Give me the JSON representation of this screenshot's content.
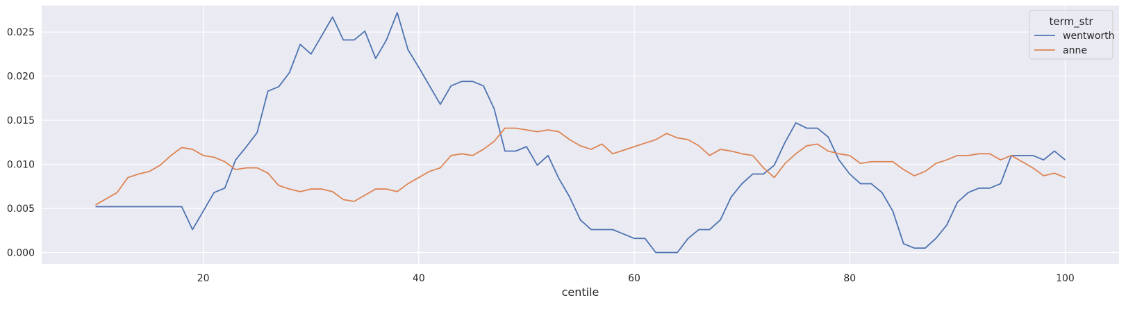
{
  "chart_data": {
    "type": "line",
    "title": "",
    "xlabel": "centile",
    "ylabel": "",
    "xlim": [
      5,
      105
    ],
    "ylim": [
      -0.0013,
      0.028
    ],
    "grid": true,
    "xticks": [
      20,
      40,
      60,
      80,
      100
    ],
    "xtick_labels": [
      "20",
      "40",
      "60",
      "80",
      "100"
    ],
    "yticks": [
      0.0,
      0.005,
      0.01,
      0.015,
      0.02,
      0.025
    ],
    "ytick_labels": [
      "0.000",
      "0.005",
      "0.010",
      "0.015",
      "0.020",
      "0.025"
    ],
    "legend": {
      "title": "term_str",
      "position": "top-right"
    },
    "x": [
      10,
      11,
      12,
      13,
      14,
      15,
      16,
      17,
      18,
      19,
      20,
      21,
      22,
      23,
      24,
      25,
      26,
      27,
      28,
      29,
      30,
      31,
      32,
      33,
      34,
      35,
      36,
      37,
      38,
      39,
      40,
      41,
      42,
      43,
      44,
      45,
      46,
      47,
      48,
      49,
      50,
      51,
      52,
      53,
      54,
      55,
      56,
      57,
      58,
      59,
      60,
      61,
      62,
      63,
      64,
      65,
      66,
      67,
      68,
      69,
      70,
      71,
      72,
      73,
      74,
      75,
      76,
      77,
      78,
      79,
      80,
      81,
      82,
      83,
      84,
      85,
      86,
      87,
      88,
      89,
      90,
      91,
      92,
      93,
      94,
      95,
      96,
      97,
      98,
      99,
      100
    ],
    "series": [
      {
        "name": "wentworth",
        "color": "#4c72b0",
        "values": [
          0.0052,
          0.0052,
          0.0052,
          0.0052,
          0.0052,
          0.0052,
          0.0052,
          0.0052,
          0.0052,
          0.0026,
          0.0047,
          0.0068,
          0.0073,
          0.0105,
          0.012,
          0.0136,
          0.0183,
          0.0188,
          0.0204,
          0.0236,
          0.0225,
          0.0246,
          0.0267,
          0.0241,
          0.0241,
          0.0251,
          0.022,
          0.0241,
          0.0272,
          0.023,
          0.021,
          0.0189,
          0.0168,
          0.0189,
          0.0194,
          0.0194,
          0.0189,
          0.0163,
          0.0115,
          0.0115,
          0.012,
          0.0099,
          0.011,
          0.0084,
          0.0063,
          0.0037,
          0.0026,
          0.0026,
          0.0026,
          0.0021,
          0.0016,
          0.0016,
          0.0,
          0.0,
          0.0,
          0.0016,
          0.0026,
          0.0026,
          0.0037,
          0.0063,
          0.0078,
          0.0089,
          0.0089,
          0.0099,
          0.0125,
          0.0147,
          0.0141,
          0.0141,
          0.0131,
          0.0105,
          0.0089,
          0.0078,
          0.0078,
          0.0068,
          0.0047,
          0.001,
          0.0005,
          0.0005,
          0.0016,
          0.0031,
          0.0057,
          0.0068,
          0.0073,
          0.0073,
          0.0078,
          0.011,
          0.011,
          0.011,
          0.0105,
          0.0115,
          0.0105
        ]
      },
      {
        "name": "anne",
        "color": "#dd8452",
        "values": [
          0.0054,
          0.0061,
          0.0068,
          0.0085,
          0.0089,
          0.0092,
          0.0099,
          0.011,
          0.0119,
          0.0117,
          0.011,
          0.0108,
          0.0103,
          0.0094,
          0.0096,
          0.0096,
          0.009,
          0.0076,
          0.0072,
          0.0069,
          0.0072,
          0.0072,
          0.0069,
          0.006,
          0.0058,
          0.0065,
          0.0072,
          0.0072,
          0.0069,
          0.0078,
          0.0085,
          0.0092,
          0.0096,
          0.011,
          0.0112,
          0.011,
          0.0117,
          0.0126,
          0.0141,
          0.0141,
          0.0139,
          0.0137,
          0.0139,
          0.0137,
          0.0128,
          0.0121,
          0.0117,
          0.0123,
          0.0112,
          0.0116,
          0.012,
          0.0124,
          0.0128,
          0.0135,
          0.013,
          0.0128,
          0.0121,
          0.011,
          0.0117,
          0.0115,
          0.0112,
          0.011,
          0.0096,
          0.0085,
          0.0101,
          0.0112,
          0.0121,
          0.0123,
          0.0115,
          0.0112,
          0.011,
          0.0101,
          0.0103,
          0.0103,
          0.0103,
          0.0094,
          0.0087,
          0.0092,
          0.0101,
          0.0105,
          0.011,
          0.011,
          0.0112,
          0.0112,
          0.0105,
          0.011,
          0.0103,
          0.0096,
          0.0087,
          0.009,
          0.0085
        ]
      }
    ]
  }
}
